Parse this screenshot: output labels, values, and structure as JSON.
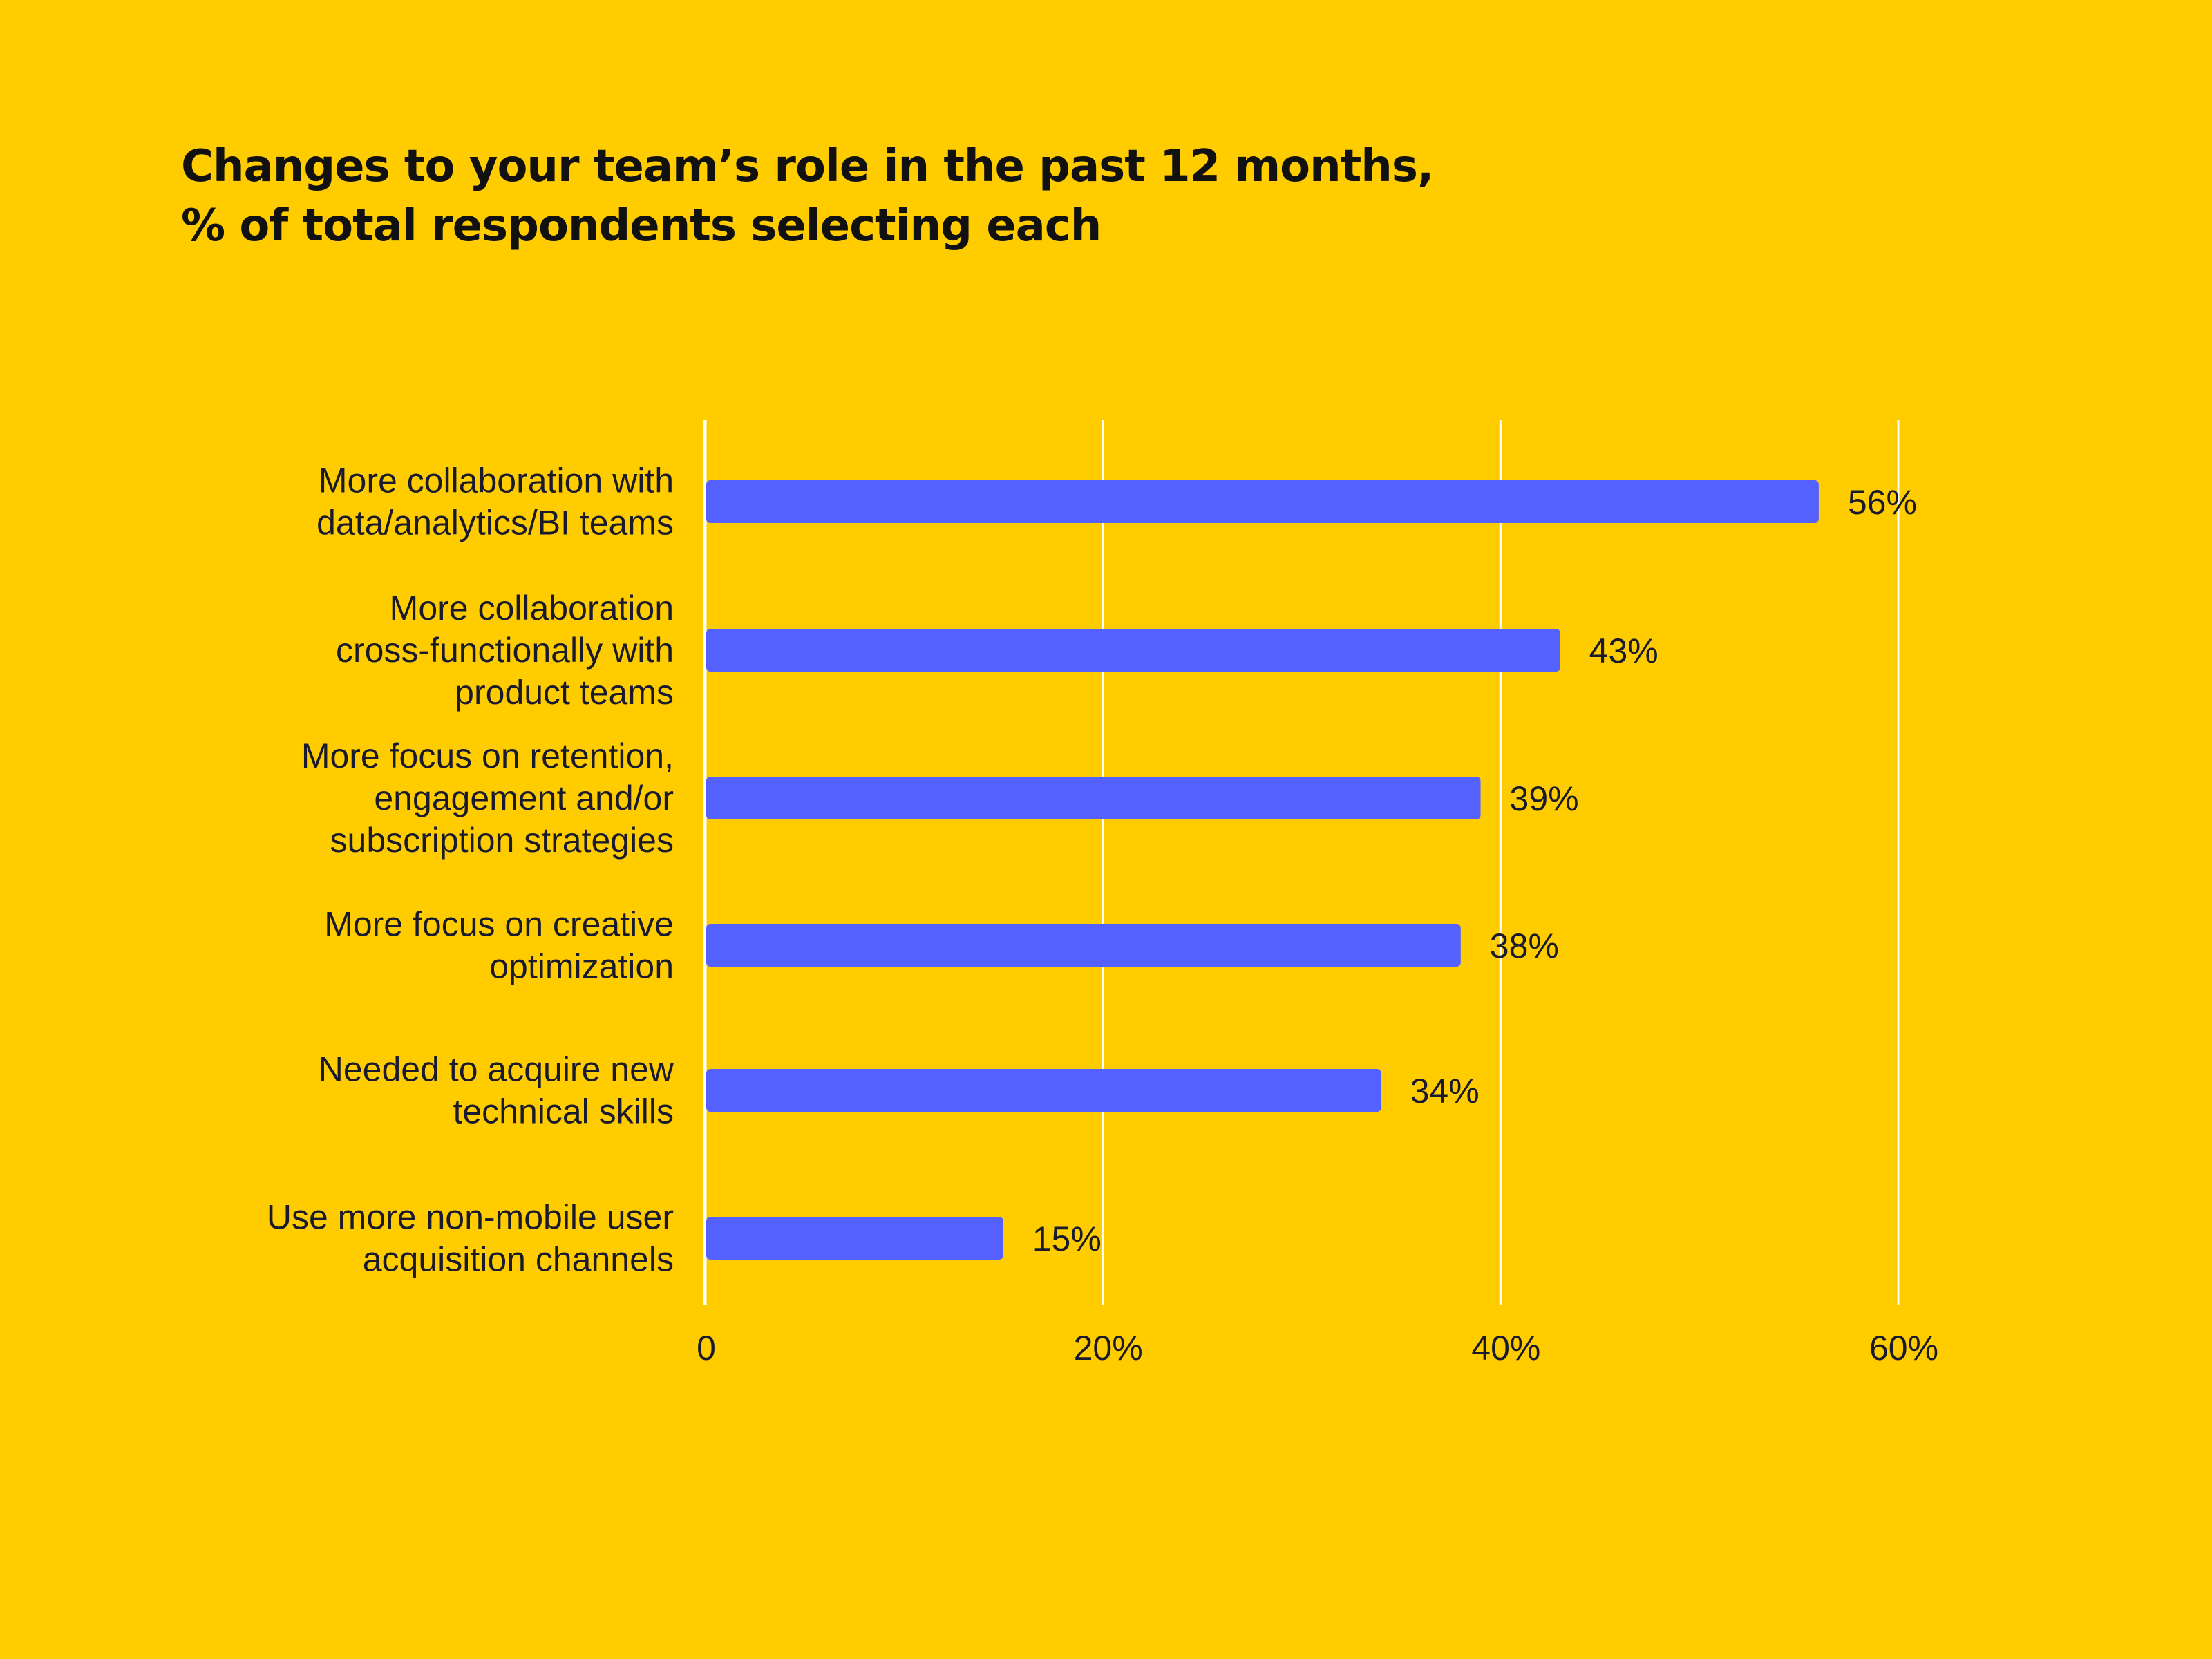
{
  "page": {
    "background": "#FFCC00"
  },
  "chart_data": {
    "type": "bar",
    "orientation": "horizontal",
    "title_lines": [
      "Changes to your team’s role in the past 12 months,",
      "% of total respondents selecting each"
    ],
    "categories": [
      [
        "More collaboration with",
        "data/analytics/BI teams"
      ],
      [
        "More collaboration",
        "cross-functionally with",
        "product teams"
      ],
      [
        "More focus on retention,",
        "engagement and/or",
        "subscription strategies"
      ],
      [
        "More focus on creative",
        "optimization"
      ],
      [
        "Needed to acquire new",
        "technical skills"
      ],
      [
        "Use more non-mobile user",
        "acquisition channels"
      ]
    ],
    "values": [
      56,
      43,
      39,
      38,
      34,
      15
    ],
    "value_labels": [
      "56%",
      "43%",
      "39%",
      "38%",
      "34%",
      "15%"
    ],
    "xlim": [
      0,
      60
    ],
    "xticks": [
      0,
      20,
      40,
      60
    ],
    "xtick_labels": [
      "0",
      "20%",
      "40%",
      "60%"
    ],
    "grid": true,
    "bar_color": "#5561FF",
    "grid_color": "#FFFFFF",
    "text_color": "#1a1a2e"
  }
}
